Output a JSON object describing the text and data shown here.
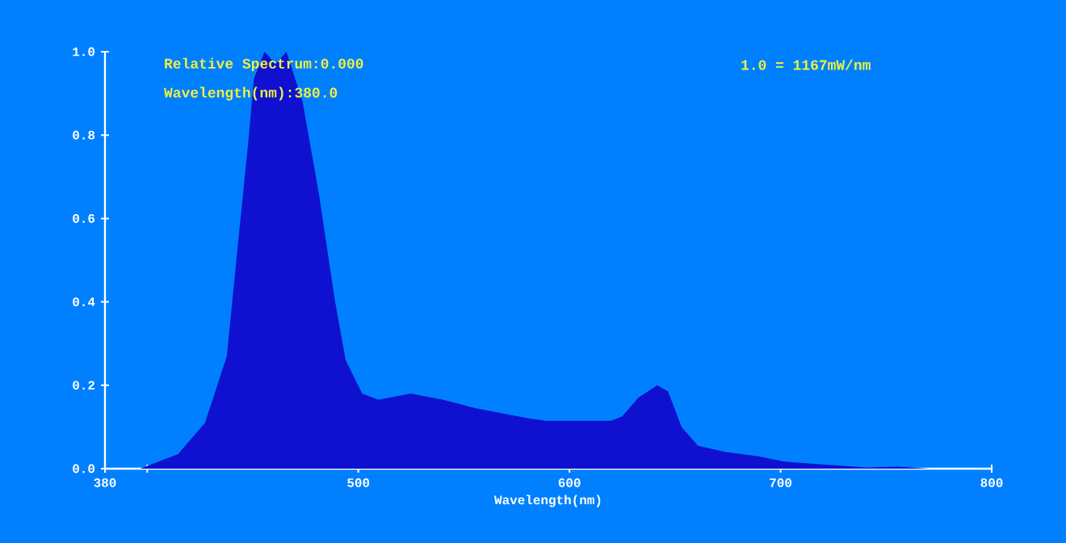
{
  "chart_data": {
    "type": "area",
    "xlabel": "Wavelength(nm)",
    "annotations": [
      "Relative Spectrum:0.000",
      "Wavelength(nm):380.0",
      "1.0 = 1167mW/nm"
    ],
    "series": [
      {
        "color": "#1010d0",
        "x": [
          380,
          396.7,
          414.6,
          427.4,
          437.7,
          442.8,
          448,
          450.5,
          455.6,
          460.8,
          465.9,
          473.6,
          481.3,
          489,
          494,
          501.8,
          509.5,
          524.8,
          540.2,
          555.6,
          571,
          581.3,
          589,
          604.4,
          619.8,
          624.9,
          632.6,
          641.6,
          646.7,
          653.1,
          660.8,
          673.6,
          689,
          701.8,
          719.8,
          740.2,
          755.6,
          771,
          800
        ],
        "values": [
          0,
          0,
          0.035,
          0.11,
          0.27,
          0.53,
          0.79,
          0.935,
          1.0,
          0.97,
          1.0,
          0.88,
          0.66,
          0.4,
          0.26,
          0.18,
          0.165,
          0.18,
          0.165,
          0.145,
          0.13,
          0.12,
          0.115,
          0.115,
          0.115,
          0.125,
          0.17,
          0.2,
          0.185,
          0.1,
          0.055,
          0.04,
          0.03,
          0.017,
          0.01,
          0.003,
          0.005,
          0,
          0
        ]
      }
    ],
    "xlim": [
      380,
      800
    ],
    "ylim": [
      0,
      1.0
    ],
    "xticks": [
      380,
      {
        "value": 400,
        "label": null
      },
      500,
      600,
      700,
      800
    ],
    "yticks": [
      {
        "value": 0,
        "label": "0.0"
      },
      0.2,
      0.4,
      0.6,
      0.8,
      {
        "value": 1.0,
        "label": "1.0"
      }
    ]
  }
}
